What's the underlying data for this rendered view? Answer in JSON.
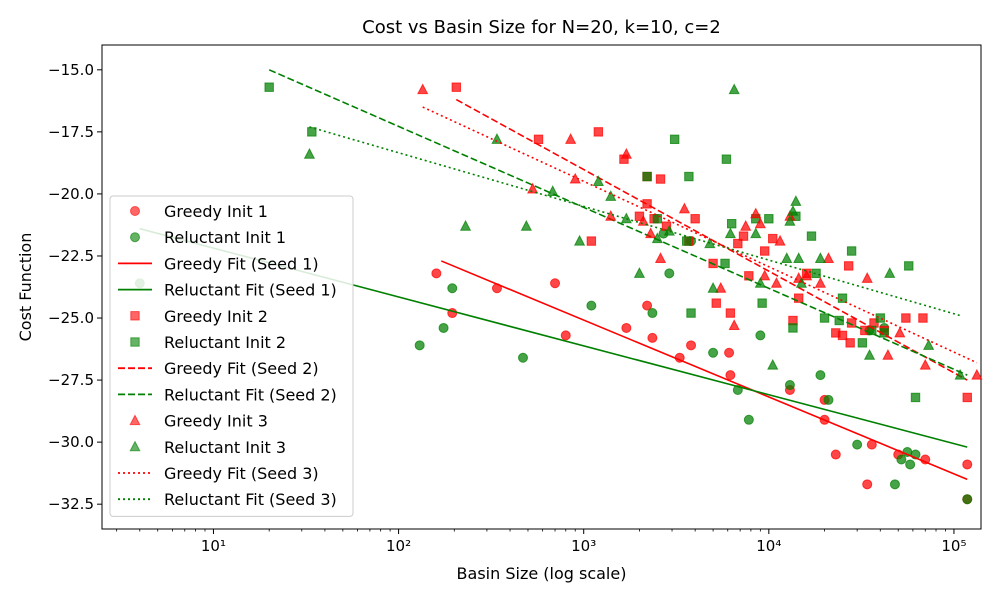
{
  "chart_data": {
    "type": "scatter",
    "title": "Cost vs Basin Size for N=20, k=10, c=2",
    "xlabel": "Basin Size (log scale)",
    "ylabel": "Cost Function",
    "xscale": "log",
    "xlim": [
      2.5,
      140000
    ],
    "ylim": [
      -33.5,
      -14.0
    ],
    "xticks": [
      10,
      100,
      1000,
      10000,
      100000
    ],
    "xtick_labels": [
      "10¹",
      "10²",
      "10³",
      "10⁴",
      "10⁵"
    ],
    "yticks": [
      -32.5,
      -30.0,
      -27.5,
      -25.0,
      -22.5,
      -20.0,
      -17.5,
      -15.0
    ],
    "ytick_labels": [
      "−32.5",
      "−30.0",
      "−27.5",
      "−25.0",
      "−22.5",
      "−20.0",
      "−17.5",
      "−15.0"
    ],
    "grid": false,
    "legend_position": "left",
    "colors": {
      "greedy": "#ff0000",
      "reluctant": "#008000"
    },
    "series": [
      {
        "name": "Greedy Init 1",
        "kind": "scatter",
        "marker": "circle",
        "color": "#ff0000",
        "points": [
          [
            160,
            -23.2
          ],
          [
            195,
            -24.8
          ],
          [
            340,
            -23.8
          ],
          [
            700,
            -23.6
          ],
          [
            800,
            -25.7
          ],
          [
            2200,
            -24.5
          ],
          [
            2350,
            -25.8
          ],
          [
            3300,
            -26.6
          ],
          [
            3800,
            -26.1
          ],
          [
            6200,
            -27.3
          ],
          [
            6100,
            -26.4
          ],
          [
            13000,
            -27.9
          ],
          [
            20000,
            -28.3
          ],
          [
            20000,
            -29.1
          ],
          [
            23000,
            -30.5
          ],
          [
            34000,
            -31.7
          ],
          [
            36000,
            -30.1
          ],
          [
            50000,
            -30.5
          ],
          [
            70000,
            -30.7
          ],
          [
            118000,
            -30.9
          ],
          [
            118000,
            -32.3
          ],
          [
            1700,
            -25.4
          ]
        ]
      },
      {
        "name": "Reluctant Init 1",
        "kind": "scatter",
        "marker": "circle",
        "color": "#008000",
        "points": [
          [
            4,
            -23.6
          ],
          [
            130,
            -26.1
          ],
          [
            175,
            -25.4
          ],
          [
            195,
            -23.8
          ],
          [
            470,
            -26.6
          ],
          [
            1100,
            -24.5
          ],
          [
            2350,
            -24.8
          ],
          [
            2900,
            -23.2
          ],
          [
            5000,
            -26.4
          ],
          [
            6800,
            -27.9
          ],
          [
            7800,
            -29.1
          ],
          [
            9000,
            -25.7
          ],
          [
            13000,
            -27.7
          ],
          [
            19000,
            -27.3
          ],
          [
            21000,
            -28.3
          ],
          [
            30000,
            -30.1
          ],
          [
            35000,
            -25.5
          ],
          [
            42000,
            -25.4
          ],
          [
            48000,
            -31.7
          ],
          [
            52000,
            -30.7
          ],
          [
            56000,
            -30.4
          ],
          [
            58000,
            -30.9
          ],
          [
            62000,
            -30.5
          ],
          [
            118000,
            -32.3
          ],
          [
            2700,
            -21.6
          ],
          [
            3800,
            -21.9
          ]
        ]
      },
      {
        "name": "Greedy Fit (Seed 1)",
        "kind": "line",
        "style": "solid",
        "color": "#ff0000",
        "points": [
          [
            170,
            -22.7
          ],
          [
            118000,
            -31.5
          ]
        ]
      },
      {
        "name": "Reluctant Fit (Seed 1)",
        "kind": "line",
        "style": "solid",
        "color": "#008000",
        "points": [
          [
            4,
            -21.4
          ],
          [
            118000,
            -30.2
          ]
        ]
      },
      {
        "name": "Greedy Init 2",
        "kind": "scatter",
        "marker": "square",
        "color": "#ff0000",
        "points": [
          [
            205,
            -15.7
          ],
          [
            570,
            -17.8
          ],
          [
            1100,
            -21.9
          ],
          [
            1200,
            -17.5
          ],
          [
            1650,
            -18.6
          ],
          [
            2000,
            -20.9
          ],
          [
            2200,
            -19.3
          ],
          [
            2200,
            -20.4
          ],
          [
            2400,
            -21.0
          ],
          [
            2600,
            -19.4
          ],
          [
            2800,
            -21.3
          ],
          [
            3700,
            -21.9
          ],
          [
            4000,
            -21.0
          ],
          [
            5000,
            -22.8
          ],
          [
            5200,
            -24.4
          ],
          [
            6200,
            -24.8
          ],
          [
            6800,
            -22.0
          ],
          [
            7300,
            -21.7
          ],
          [
            7800,
            -23.3
          ],
          [
            9500,
            -22.3
          ],
          [
            10500,
            -21.8
          ],
          [
            13500,
            -25.1
          ],
          [
            14500,
            -24.2
          ],
          [
            16000,
            -23.2
          ],
          [
            23000,
            -25.6
          ],
          [
            25000,
            -25.7
          ],
          [
            27000,
            -22.9
          ],
          [
            27500,
            -26.0
          ],
          [
            28000,
            -25.2
          ],
          [
            33000,
            -25.5
          ],
          [
            37000,
            -25.2
          ],
          [
            42000,
            -25.5
          ],
          [
            55000,
            -25.0
          ],
          [
            68000,
            -25.0
          ],
          [
            118000,
            -28.2
          ]
        ]
      },
      {
        "name": "Reluctant Init 2",
        "kind": "scatter",
        "marker": "square",
        "color": "#008000",
        "points": [
          [
            20,
            -15.7
          ],
          [
            34,
            -17.5
          ],
          [
            2200,
            -19.3
          ],
          [
            2500,
            -21.0
          ],
          [
            3100,
            -17.8
          ],
          [
            3600,
            -21.9
          ],
          [
            3700,
            -19.3
          ],
          [
            3800,
            -24.8
          ],
          [
            5900,
            -18.6
          ],
          [
            5800,
            -22.8
          ],
          [
            6300,
            -21.2
          ],
          [
            8500,
            -21.0
          ],
          [
            9200,
            -24.4
          ],
          [
            10000,
            -21.0
          ],
          [
            13500,
            -25.4
          ],
          [
            14000,
            -20.9
          ],
          [
            17000,
            -21.7
          ],
          [
            18000,
            -23.2
          ],
          [
            20000,
            -25.0
          ],
          [
            24000,
            -25.1
          ],
          [
            25000,
            -24.2
          ],
          [
            28000,
            -22.3
          ],
          [
            32000,
            -26.0
          ],
          [
            36000,
            -25.5
          ],
          [
            40000,
            -25.0
          ],
          [
            42000,
            -25.6
          ],
          [
            57000,
            -22.9
          ],
          [
            62000,
            -28.2
          ]
        ]
      },
      {
        "name": "Greedy Fit (Seed 2)",
        "kind": "line",
        "style": "dashed",
        "color": "#ff0000",
        "points": [
          [
            205,
            -16.2
          ],
          [
            118000,
            -27.5
          ]
        ]
      },
      {
        "name": "Reluctant Fit (Seed 2)",
        "kind": "line",
        "style": "dashed",
        "color": "#008000",
        "points": [
          [
            20,
            -15.0
          ],
          [
            118000,
            -27.3
          ]
        ]
      },
      {
        "name": "Greedy Init 3",
        "kind": "scatter",
        "marker": "triangle",
        "color": "#ff0000",
        "points": [
          [
            135,
            -15.8
          ],
          [
            530,
            -19.8
          ],
          [
            850,
            -17.8
          ],
          [
            900,
            -19.4
          ],
          [
            1400,
            -20.9
          ],
          [
            1700,
            -18.4
          ],
          [
            2100,
            -21.1
          ],
          [
            2300,
            -21.6
          ],
          [
            2600,
            -22.6
          ],
          [
            3500,
            -20.6
          ],
          [
            5500,
            -23.8
          ],
          [
            6500,
            -25.3
          ],
          [
            7500,
            -21.3
          ],
          [
            8500,
            -20.8
          ],
          [
            9000,
            -21.2
          ],
          [
            9500,
            -23.3
          ],
          [
            11000,
            -23.6
          ],
          [
            11500,
            -21.9
          ],
          [
            13000,
            -20.9
          ],
          [
            14500,
            -23.4
          ],
          [
            16000,
            -23.3
          ],
          [
            19000,
            -23.6
          ],
          [
            21000,
            -22.6
          ],
          [
            34000,
            -23.4
          ],
          [
            44000,
            -26.5
          ],
          [
            51000,
            -25.6
          ],
          [
            70000,
            -26.9
          ],
          [
            133000,
            -27.3
          ]
        ]
      },
      {
        "name": "Reluctant Init 3",
        "kind": "scatter",
        "marker": "triangle",
        "color": "#008000",
        "points": [
          [
            33,
            -18.4
          ],
          [
            230,
            -21.3
          ],
          [
            340,
            -17.8
          ],
          [
            490,
            -21.3
          ],
          [
            680,
            -19.9
          ],
          [
            950,
            -21.9
          ],
          [
            1200,
            -19.5
          ],
          [
            1400,
            -20.1
          ],
          [
            1700,
            -21.0
          ],
          [
            2000,
            -23.2
          ],
          [
            2500,
            -21.8
          ],
          [
            2900,
            -21.5
          ],
          [
            4800,
            -22.0
          ],
          [
            5000,
            -23.8
          ],
          [
            6200,
            -21.6
          ],
          [
            6500,
            -15.8
          ],
          [
            8500,
            -21.6
          ],
          [
            9000,
            -23.6
          ],
          [
            10500,
            -26.9
          ],
          [
            12500,
            -22.6
          ],
          [
            13000,
            -21.1
          ],
          [
            13500,
            -20.7
          ],
          [
            14000,
            -20.3
          ],
          [
            14500,
            -22.6
          ],
          [
            15000,
            -23.6
          ],
          [
            19000,
            -22.6
          ],
          [
            35000,
            -26.5
          ],
          [
            45000,
            -23.2
          ],
          [
            73000,
            -26.1
          ],
          [
            108000,
            -27.3
          ]
        ]
      },
      {
        "name": "Greedy Fit (Seed 3)",
        "kind": "line",
        "style": "dotted",
        "color": "#ff0000",
        "points": [
          [
            135,
            -16.5
          ],
          [
            133000,
            -26.8
          ]
        ]
      },
      {
        "name": "Reluctant Fit (Seed 3)",
        "kind": "line",
        "style": "dotted",
        "color": "#008000",
        "points": [
          [
            33,
            -17.3
          ],
          [
            108000,
            -24.9
          ]
        ]
      }
    ]
  }
}
